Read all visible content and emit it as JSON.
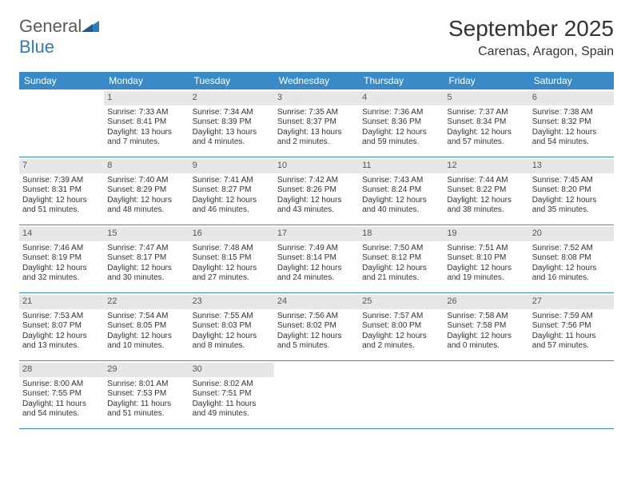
{
  "brand": {
    "word1": "General",
    "word2": "Blue"
  },
  "title": "September 2025",
  "location": "Carenas, Aragon, Spain",
  "colors": {
    "header_bg": "#3a8ac7",
    "header_text": "#ffffff",
    "daynum_bg": "#e7e7e7",
    "daynum_text": "#555555",
    "border": "#3a8ac7",
    "body_text": "#333333",
    "background": "#ffffff",
    "logo_gray": "#5a5a5a",
    "logo_blue": "#2f7bbf"
  },
  "typography": {
    "title_fontsize": 28,
    "location_fontsize": 16,
    "dow_fontsize": 12,
    "daynum_fontsize": 11,
    "body_fontsize": 10
  },
  "days_of_week": [
    "Sunday",
    "Monday",
    "Tuesday",
    "Wednesday",
    "Thursday",
    "Friday",
    "Saturday"
  ],
  "weeks": [
    [
      null,
      {
        "n": "1",
        "sr": "Sunrise: 7:33 AM",
        "ss": "Sunset: 8:41 PM",
        "dl": "Daylight: 13 hours and 7 minutes."
      },
      {
        "n": "2",
        "sr": "Sunrise: 7:34 AM",
        "ss": "Sunset: 8:39 PM",
        "dl": "Daylight: 13 hours and 4 minutes."
      },
      {
        "n": "3",
        "sr": "Sunrise: 7:35 AM",
        "ss": "Sunset: 8:37 PM",
        "dl": "Daylight: 13 hours and 2 minutes."
      },
      {
        "n": "4",
        "sr": "Sunrise: 7:36 AM",
        "ss": "Sunset: 8:36 PM",
        "dl": "Daylight: 12 hours and 59 minutes."
      },
      {
        "n": "5",
        "sr": "Sunrise: 7:37 AM",
        "ss": "Sunset: 8:34 PM",
        "dl": "Daylight: 12 hours and 57 minutes."
      },
      {
        "n": "6",
        "sr": "Sunrise: 7:38 AM",
        "ss": "Sunset: 8:32 PM",
        "dl": "Daylight: 12 hours and 54 minutes."
      }
    ],
    [
      {
        "n": "7",
        "sr": "Sunrise: 7:39 AM",
        "ss": "Sunset: 8:31 PM",
        "dl": "Daylight: 12 hours and 51 minutes."
      },
      {
        "n": "8",
        "sr": "Sunrise: 7:40 AM",
        "ss": "Sunset: 8:29 PM",
        "dl": "Daylight: 12 hours and 48 minutes."
      },
      {
        "n": "9",
        "sr": "Sunrise: 7:41 AM",
        "ss": "Sunset: 8:27 PM",
        "dl": "Daylight: 12 hours and 46 minutes."
      },
      {
        "n": "10",
        "sr": "Sunrise: 7:42 AM",
        "ss": "Sunset: 8:26 PM",
        "dl": "Daylight: 12 hours and 43 minutes."
      },
      {
        "n": "11",
        "sr": "Sunrise: 7:43 AM",
        "ss": "Sunset: 8:24 PM",
        "dl": "Daylight: 12 hours and 40 minutes."
      },
      {
        "n": "12",
        "sr": "Sunrise: 7:44 AM",
        "ss": "Sunset: 8:22 PM",
        "dl": "Daylight: 12 hours and 38 minutes."
      },
      {
        "n": "13",
        "sr": "Sunrise: 7:45 AM",
        "ss": "Sunset: 8:20 PM",
        "dl": "Daylight: 12 hours and 35 minutes."
      }
    ],
    [
      {
        "n": "14",
        "sr": "Sunrise: 7:46 AM",
        "ss": "Sunset: 8:19 PM",
        "dl": "Daylight: 12 hours and 32 minutes."
      },
      {
        "n": "15",
        "sr": "Sunrise: 7:47 AM",
        "ss": "Sunset: 8:17 PM",
        "dl": "Daylight: 12 hours and 30 minutes."
      },
      {
        "n": "16",
        "sr": "Sunrise: 7:48 AM",
        "ss": "Sunset: 8:15 PM",
        "dl": "Daylight: 12 hours and 27 minutes."
      },
      {
        "n": "17",
        "sr": "Sunrise: 7:49 AM",
        "ss": "Sunset: 8:14 PM",
        "dl": "Daylight: 12 hours and 24 minutes."
      },
      {
        "n": "18",
        "sr": "Sunrise: 7:50 AM",
        "ss": "Sunset: 8:12 PM",
        "dl": "Daylight: 12 hours and 21 minutes."
      },
      {
        "n": "19",
        "sr": "Sunrise: 7:51 AM",
        "ss": "Sunset: 8:10 PM",
        "dl": "Daylight: 12 hours and 19 minutes."
      },
      {
        "n": "20",
        "sr": "Sunrise: 7:52 AM",
        "ss": "Sunset: 8:08 PM",
        "dl": "Daylight: 12 hours and 16 minutes."
      }
    ],
    [
      {
        "n": "21",
        "sr": "Sunrise: 7:53 AM",
        "ss": "Sunset: 8:07 PM",
        "dl": "Daylight: 12 hours and 13 minutes."
      },
      {
        "n": "22",
        "sr": "Sunrise: 7:54 AM",
        "ss": "Sunset: 8:05 PM",
        "dl": "Daylight: 12 hours and 10 minutes."
      },
      {
        "n": "23",
        "sr": "Sunrise: 7:55 AM",
        "ss": "Sunset: 8:03 PM",
        "dl": "Daylight: 12 hours and 8 minutes."
      },
      {
        "n": "24",
        "sr": "Sunrise: 7:56 AM",
        "ss": "Sunset: 8:02 PM",
        "dl": "Daylight: 12 hours and 5 minutes."
      },
      {
        "n": "25",
        "sr": "Sunrise: 7:57 AM",
        "ss": "Sunset: 8:00 PM",
        "dl": "Daylight: 12 hours and 2 minutes."
      },
      {
        "n": "26",
        "sr": "Sunrise: 7:58 AM",
        "ss": "Sunset: 7:58 PM",
        "dl": "Daylight: 12 hours and 0 minutes."
      },
      {
        "n": "27",
        "sr": "Sunrise: 7:59 AM",
        "ss": "Sunset: 7:56 PM",
        "dl": "Daylight: 11 hours and 57 minutes."
      }
    ],
    [
      {
        "n": "28",
        "sr": "Sunrise: 8:00 AM",
        "ss": "Sunset: 7:55 PM",
        "dl": "Daylight: 11 hours and 54 minutes."
      },
      {
        "n": "29",
        "sr": "Sunrise: 8:01 AM",
        "ss": "Sunset: 7:53 PM",
        "dl": "Daylight: 11 hours and 51 minutes."
      },
      {
        "n": "30",
        "sr": "Sunrise: 8:02 AM",
        "ss": "Sunset: 7:51 PM",
        "dl": "Daylight: 11 hours and 49 minutes."
      },
      null,
      null,
      null,
      null
    ]
  ]
}
